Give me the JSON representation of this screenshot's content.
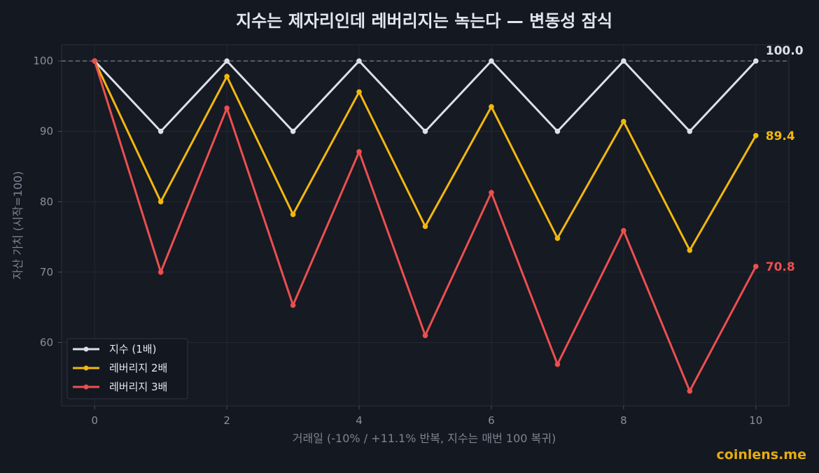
{
  "chart_data": {
    "type": "line",
    "title": "지수는 제자리인데 레버리지는 녹는다  —  변동성 잠식",
    "xlabel": "거래일 (-10% / +11.1% 반복, 지수는 매번 100 복귀)",
    "ylabel": "자산 가치 (시작=100)",
    "xlim": [
      -0.5,
      10.5
    ],
    "ylim": [
      51,
      102.3
    ],
    "xticks": [
      0,
      2,
      4,
      6,
      8,
      10
    ],
    "yticks": [
      60,
      70,
      80,
      90,
      100
    ],
    "grid": true,
    "legend": "lower-left",
    "reference_line": {
      "y": 100,
      "style": "dashed"
    },
    "x": [
      0,
      1,
      2,
      3,
      4,
      5,
      6,
      7,
      8,
      9,
      10
    ],
    "series": [
      {
        "name": "지수 (1배)",
        "color": "#dde0ea",
        "values": [
          100,
          90,
          100,
          90,
          100,
          90,
          100,
          90,
          100,
          90,
          100
        ],
        "end_label": "100.0"
      },
      {
        "name": "레버리지 2배",
        "color": "#f2b70f",
        "values": [
          100,
          80,
          97.8,
          78.2,
          95.6,
          76.5,
          93.5,
          74.8,
          91.4,
          73.1,
          89.4
        ],
        "end_label": "89.4"
      },
      {
        "name": "레버리지 3배",
        "color": "#ec4f4f",
        "values": [
          100,
          70,
          93.3,
          65.3,
          87.1,
          61.0,
          81.3,
          56.9,
          75.9,
          53.1,
          70.8
        ],
        "end_label": "70.8"
      }
    ]
  },
  "watermark": "coinlens.me"
}
